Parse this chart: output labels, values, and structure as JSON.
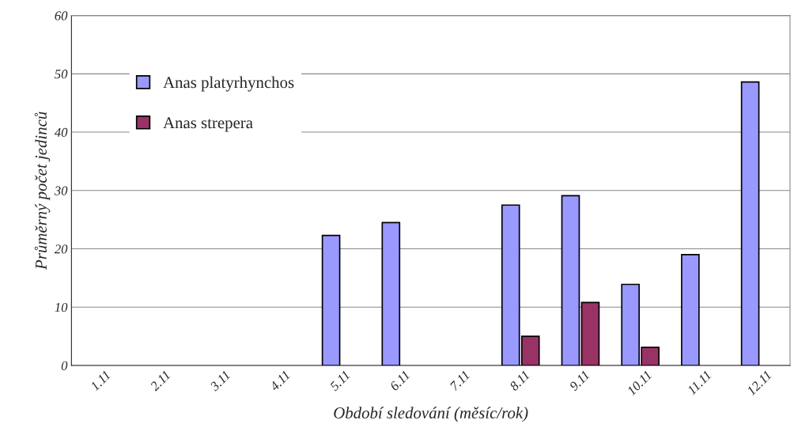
{
  "chart_data": {
    "type": "bar",
    "xlabel": "Období sledování (měsíc/rok)",
    "ylabel": "Průměrný počet jedinců",
    "categories": [
      "1.11",
      "2.11",
      "3.11",
      "4.11",
      "5.11",
      "6.11",
      "7.11",
      "8.11",
      "9.11",
      "10.11",
      "11.11",
      "12.11"
    ],
    "series": [
      {
        "name": "Anas platyrhynchos",
        "color": "#9999ff",
        "values": [
          null,
          null,
          null,
          null,
          22.3,
          24.5,
          null,
          27.5,
          29.1,
          13.9,
          19.0,
          48.6
        ]
      },
      {
        "name": "Anas strepera",
        "color": "#993366",
        "values": [
          null,
          null,
          null,
          null,
          null,
          null,
          null,
          5.0,
          10.8,
          3.1,
          null,
          null
        ]
      }
    ],
    "ylim": [
      0,
      60
    ],
    "yticks": [
      0,
      10,
      20,
      30,
      40,
      50,
      60
    ],
    "grid": "y",
    "legend": "top left"
  }
}
